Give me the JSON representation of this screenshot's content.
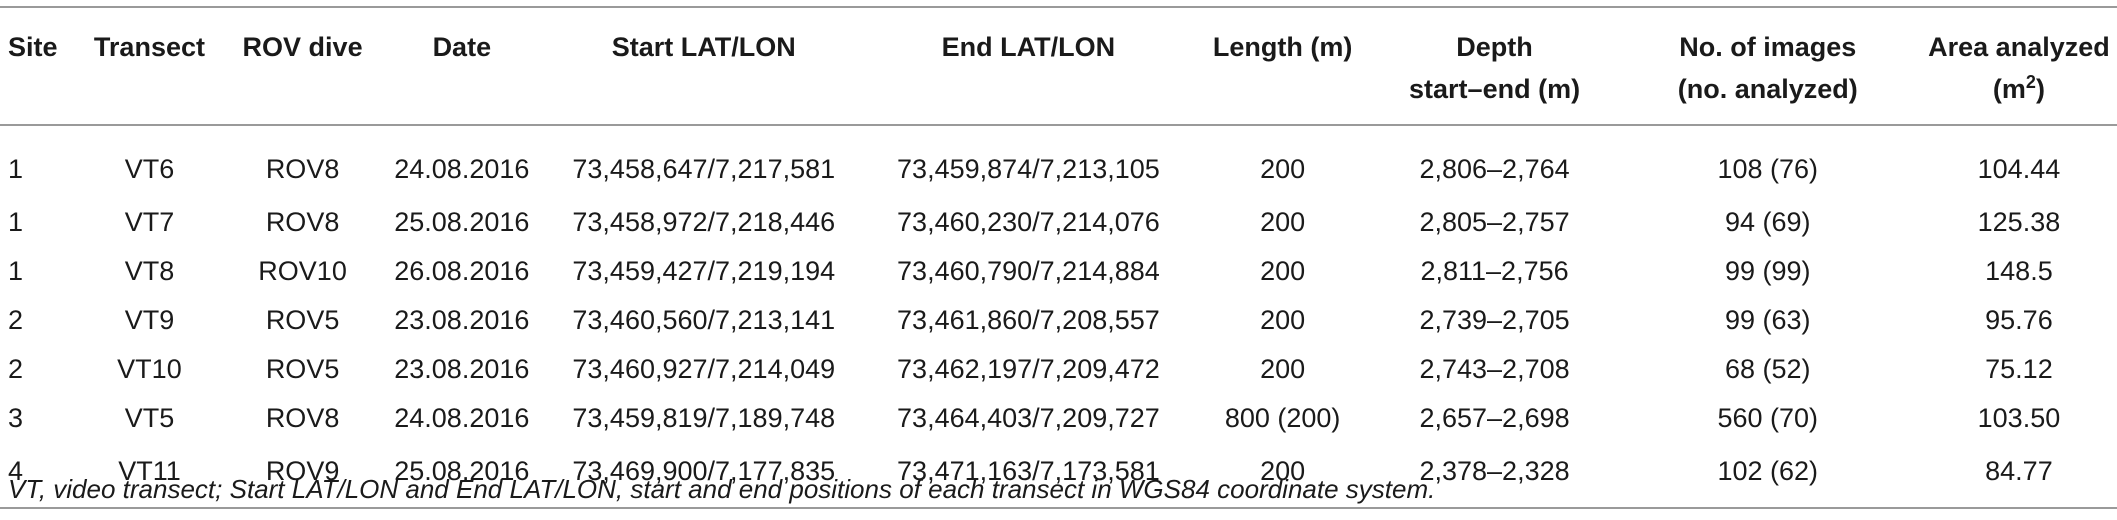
{
  "table": {
    "headers": {
      "site": "Site",
      "transect": "Transect",
      "rov_dive": "ROV dive",
      "date": "Date",
      "start_latlon": "Start LAT/LON",
      "end_latlon": "End LAT/LON",
      "length": "Length (m)",
      "depth_line1": "Depth",
      "depth_line2": "start–end (m)",
      "images_line1": "No. of images",
      "images_line2": "(no. analyzed)",
      "area_line1": "Area analyzed",
      "area_line2_pre": "(m",
      "area_line2_sup": "2",
      "area_line2_post": ")"
    },
    "rows": [
      {
        "site": "1",
        "transect": "VT6",
        "rov": "ROV8",
        "date": "24.08.2016",
        "start": "73,458,647/7,217,581",
        "end": "73,459,874/7,213,105",
        "length": "200",
        "depth": "2,806–2,764",
        "images": "108 (76)",
        "area": "104.44"
      },
      {
        "site": "1",
        "transect": "VT7",
        "rov": "ROV8",
        "date": "25.08.2016",
        "start": "73,458,972/7,218,446",
        "end": "73,460,230/7,214,076",
        "length": "200",
        "depth": "2,805–2,757",
        "images": "94 (69)",
        "area": "125.38"
      },
      {
        "site": "1",
        "transect": "VT8",
        "rov": "ROV10",
        "date": "26.08.2016",
        "start": "73,459,427/7,219,194",
        "end": "73,460,790/7,214,884",
        "length": "200",
        "depth": "2,811–2,756",
        "images": "99 (99)",
        "area": "148.5"
      },
      {
        "site": "2",
        "transect": "VT9",
        "rov": "ROV5",
        "date": "23.08.2016",
        "start": "73,460,560/7,213,141",
        "end": "73,461,860/7,208,557",
        "length": "200",
        "depth": "2,739–2,705",
        "images": "99 (63)",
        "area": "95.76"
      },
      {
        "site": "2",
        "transect": "VT10",
        "rov": "ROV5",
        "date": "23.08.2016",
        "start": "73,460,927/7,214,049",
        "end": "73,462,197/7,209,472",
        "length": "200",
        "depth": "2,743–2,708",
        "images": "68 (52)",
        "area": "75.12"
      },
      {
        "site": "3",
        "transect": "VT5",
        "rov": "ROV8",
        "date": "24.08.2016",
        "start": "73,459,819/7,189,748",
        "end": "73,464,403/7,209,727",
        "length": "800 (200)",
        "depth": "2,657–2,698",
        "images": "560 (70)",
        "area": "103.50"
      },
      {
        "site": "4",
        "transect": "VT11",
        "rov": "ROV9",
        "date": "25.08.2016",
        "start": "73,469,900/7,177,835",
        "end": "73,471,163/7,173,581",
        "length": "200",
        "depth": "2,378–2,328",
        "images": "102 (62)",
        "area": "84.77"
      }
    ]
  },
  "footnote": "VT, video transect; Start LAT/LON and End LAT/LON, start and end positions of each transect in WGS84 coordinate system."
}
